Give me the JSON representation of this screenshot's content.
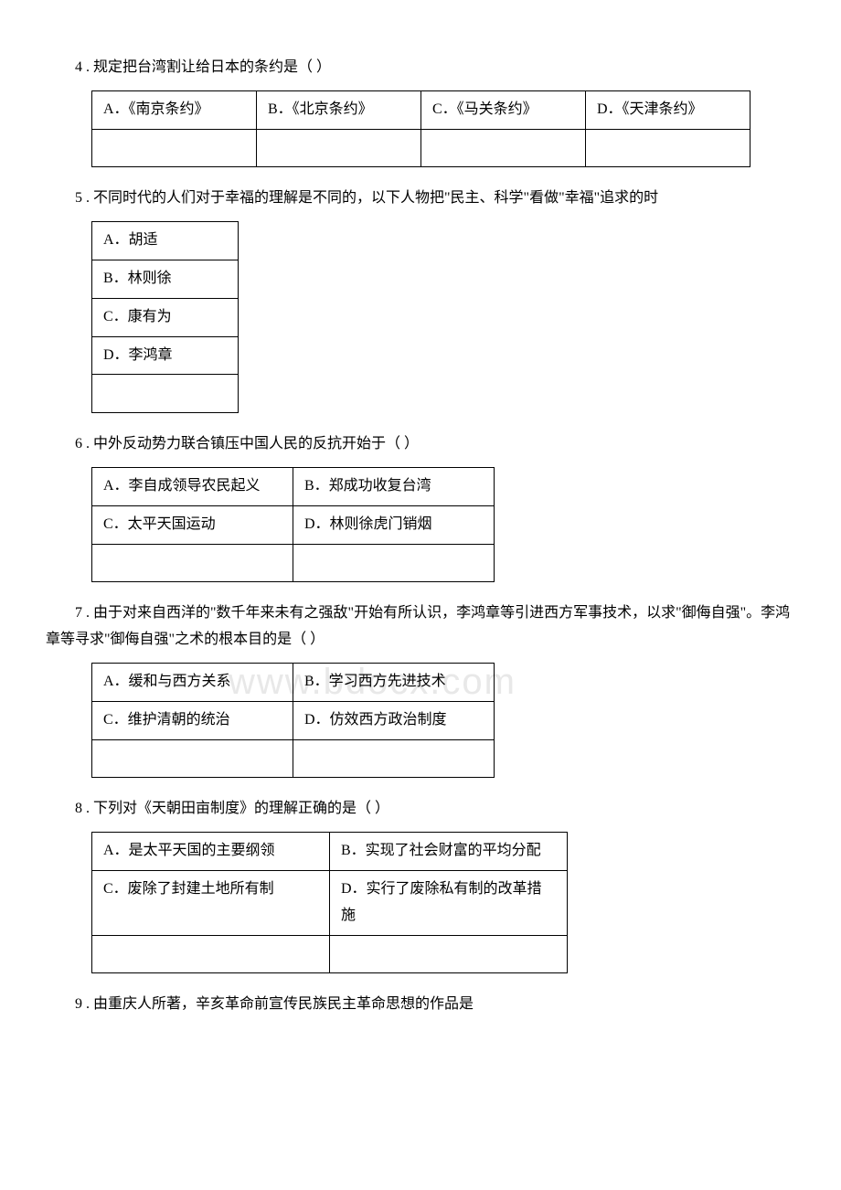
{
  "watermark": "www.bdocx.com",
  "questions": [
    {
      "number": "4",
      "text": "4 . 规定把台湾割让给日本的条约是（ ）",
      "tableClass": "table-4col",
      "options": [
        [
          "A．《南京条约》",
          "B．《北京条约》",
          "C．《马关条约》",
          "D．《天津条约》"
        ],
        [
          "",
          "",
          "",
          ""
        ]
      ]
    },
    {
      "number": "5",
      "text": "5 . 不同时代的人们对于幸福的理解是不同的，以下人物把\"民主、科学\"看做\"幸福\"追求的时",
      "tableClass": "table-1col",
      "options": [
        [
          "A．胡适"
        ],
        [
          "B．林则徐"
        ],
        [
          "C．康有为"
        ],
        [
          "D．李鸿章"
        ],
        [
          ""
        ]
      ]
    },
    {
      "number": "6",
      "text": "6 . 中外反动势力联合镇压中国人民的反抗开始于（ ）",
      "tableClass": "table-2col",
      "options": [
        [
          "A．李自成领导农民起义",
          "B．郑成功收复台湾"
        ],
        [
          "C．太平天国运动",
          "D．林则徐虎门销烟"
        ],
        [
          "",
          ""
        ]
      ]
    },
    {
      "number": "7",
      "text": "7 . 由于对来自西洋的\"数千年来未有之强敌\"开始有所认识，李鸿章等引进西方军事技术，以求\"御侮自强\"。李鸿章等寻求\"御侮自强\"之术的根本目的是（ ）",
      "tableClass": "table-2col",
      "options": [
        [
          "A．缓和与西方关系",
          "B．学习西方先进技术"
        ],
        [
          "C．维护清朝的统治",
          "D．仿效西方政治制度"
        ],
        [
          "",
          ""
        ]
      ]
    },
    {
      "number": "8",
      "text": "8 . 下列对《天朝田亩制度》的理解正确的是（ ）",
      "tableClass": "table-2col-wide",
      "options": [
        [
          "A．是太平天国的主要纲领",
          "B．实现了社会财富的平均分配"
        ],
        [
          "C．废除了封建土地所有制",
          "D．实行了废除私有制的改革措施"
        ],
        [
          "",
          ""
        ]
      ]
    },
    {
      "number": "9",
      "text": "9 . 由重庆人所著，辛亥革命前宣传民族民主革命思想的作品是",
      "tableClass": "",
      "options": []
    }
  ]
}
